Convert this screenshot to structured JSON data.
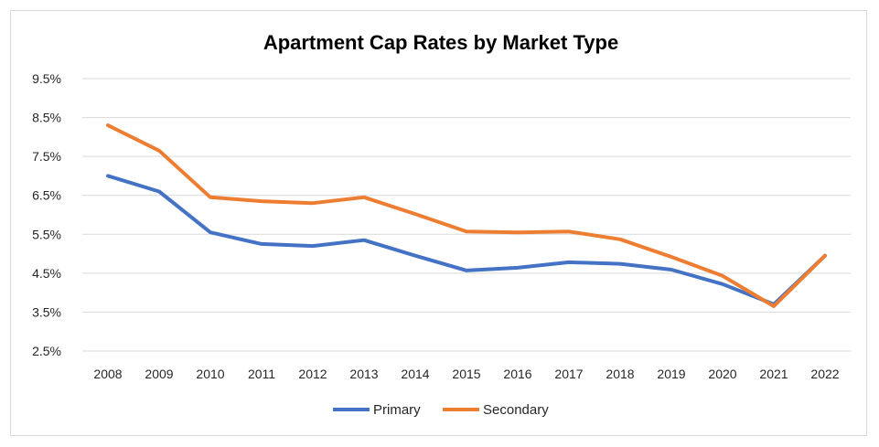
{
  "chart_data": {
    "type": "line",
    "title": "Apartment Cap Rates by Market Type",
    "xlabel": "",
    "ylabel": "",
    "x": [
      "2008",
      "2009",
      "2010",
      "2011",
      "2012",
      "2013",
      "2014",
      "2015",
      "2016",
      "2017",
      "2018",
      "2019",
      "2020",
      "2021",
      "2022"
    ],
    "yticks": [
      "2.5%",
      "3.5%",
      "4.5%",
      "5.5%",
      "6.5%",
      "7.5%",
      "8.5%",
      "9.5%"
    ],
    "ylim": [
      2.5,
      9.5
    ],
    "grid": true,
    "legend_position": "bottom",
    "series": [
      {
        "name": "Primary",
        "color": "#4472C4",
        "values": [
          7.0,
          6.6,
          5.55,
          5.25,
          5.2,
          5.35,
          4.95,
          4.57,
          4.64,
          4.78,
          4.74,
          4.59,
          4.22,
          3.7,
          4.95
        ]
      },
      {
        "name": "Secondary",
        "color": "#ED7D31",
        "values": [
          8.3,
          7.65,
          6.45,
          6.35,
          6.3,
          6.45,
          6.02,
          5.57,
          5.55,
          5.57,
          5.37,
          4.92,
          4.43,
          3.65,
          4.95
        ]
      }
    ]
  }
}
